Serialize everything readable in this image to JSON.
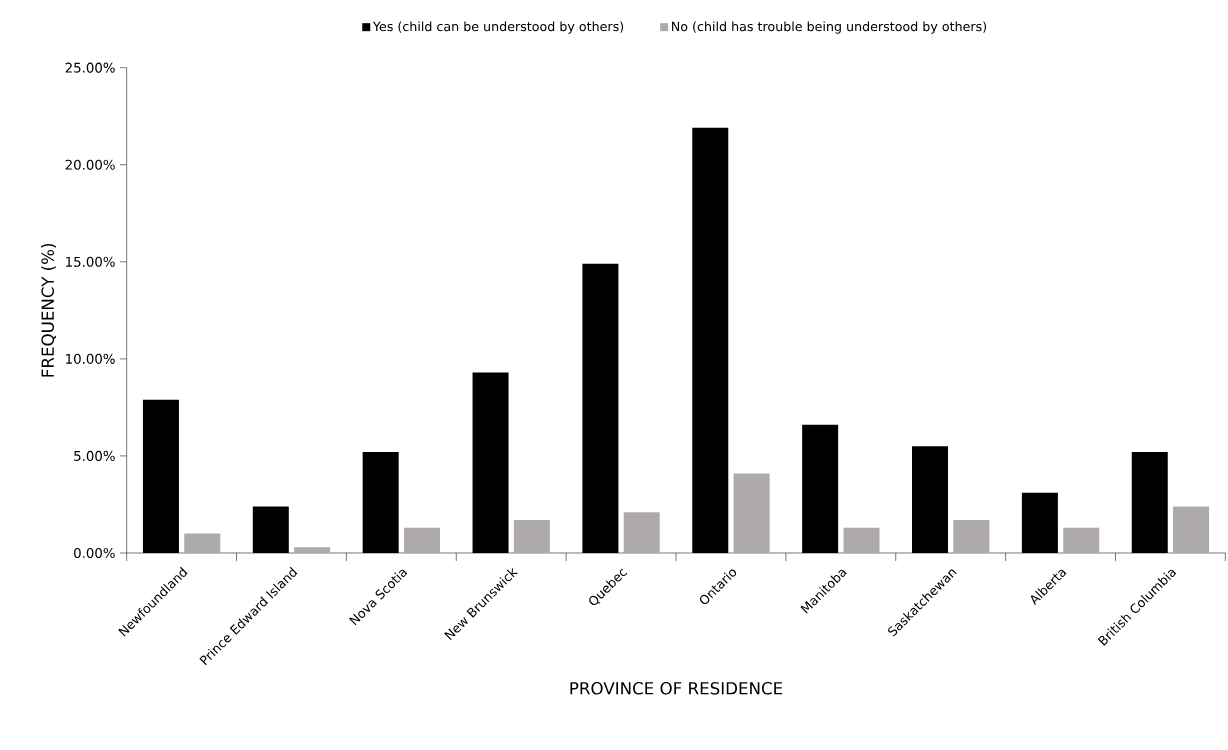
{
  "chart_data": {
    "type": "bar",
    "xlabel": "PROVINCE OF RESIDENCE",
    "ylabel": "FREQUENCY (%)",
    "categories": [
      "Newfoundland",
      "Prince Edward Island",
      "Nova Scotia",
      "New Brunswick",
      "Quebec",
      "Ontario",
      "Manitoba",
      "Saskatchewan",
      "Alberta",
      "British Columbia"
    ],
    "series": [
      {
        "name": "Yes (child can be understood by others)",
        "color": "#000000",
        "values": [
          7.9,
          2.4,
          5.2,
          9.3,
          14.9,
          21.9,
          6.6,
          5.5,
          3.1,
          5.2
        ]
      },
      {
        "name": "No (child has trouble being understood by others)",
        "color": "#aeaaaa",
        "values": [
          1.0,
          0.3,
          1.3,
          1.7,
          2.1,
          4.1,
          1.3,
          1.7,
          1.3,
          2.4
        ]
      }
    ],
    "ylim": [
      0,
      25
    ],
    "yticks": [
      {
        "value": 0,
        "label": "0.00%"
      },
      {
        "value": 5,
        "label": "5.00%"
      },
      {
        "value": 10,
        "label": "10.00%"
      },
      {
        "value": 15,
        "label": "15.00%"
      },
      {
        "value": 20,
        "label": "20.00%"
      },
      {
        "value": 25,
        "label": "25.00%"
      }
    ],
    "legend": "top"
  }
}
